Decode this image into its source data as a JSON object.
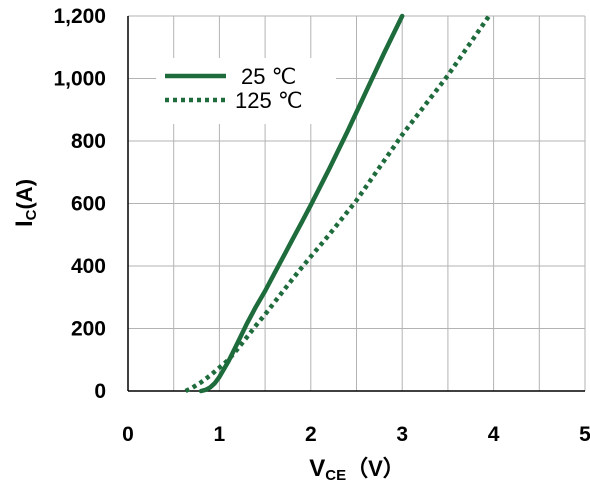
{
  "chart_data": {
    "type": "line",
    "xlabel": {
      "main": "V",
      "sub": "CE",
      "suffix": "（V）"
    },
    "ylabel": {
      "main": "I",
      "sub": "C",
      "suffix": "(A)"
    },
    "xlim": [
      0,
      5
    ],
    "ylim": [
      0,
      1200
    ],
    "x_ticks": [
      0,
      1,
      2,
      3,
      4,
      5
    ],
    "x_tick_labels": [
      "0",
      "1",
      "2",
      "3",
      "4",
      "5"
    ],
    "y_ticks": [
      0,
      200,
      400,
      600,
      800,
      1000,
      1200
    ],
    "y_tick_labels": [
      "0",
      "200",
      "400",
      "600",
      "800",
      "1,000",
      "1,200"
    ],
    "grid": {
      "x_minor_step": 0.5,
      "y_step": 200
    },
    "legend_position": "top-left",
    "colors": {
      "series": "#1e6b3c",
      "grid": "#b3b3b3",
      "axis": "#000000"
    },
    "series": [
      {
        "name": "25 ℃",
        "style": "solid",
        "points": [
          [
            0.8,
            0
          ],
          [
            0.85,
            4
          ],
          [
            0.9,
            12
          ],
          [
            0.95,
            25
          ],
          [
            1.0,
            45
          ],
          [
            1.1,
            95
          ],
          [
            1.2,
            155
          ],
          [
            1.3,
            215
          ],
          [
            1.4,
            270
          ],
          [
            1.5,
            320
          ],
          [
            1.6,
            375
          ],
          [
            1.7,
            430
          ],
          [
            1.8,
            485
          ],
          [
            1.9,
            540
          ],
          [
            2.0,
            595
          ],
          [
            2.2,
            710
          ],
          [
            2.4,
            830
          ],
          [
            2.6,
            955
          ],
          [
            2.8,
            1080
          ],
          [
            3.0,
            1200
          ]
        ]
      },
      {
        "name": "125 ℃",
        "style": "dotted",
        "points": [
          [
            0.63,
            0
          ],
          [
            0.7,
            10
          ],
          [
            0.8,
            28
          ],
          [
            0.9,
            50
          ],
          [
            1.0,
            75
          ],
          [
            1.1,
            100
          ],
          [
            1.2,
            135
          ],
          [
            1.3,
            172
          ],
          [
            1.4,
            210
          ],
          [
            1.5,
            245
          ],
          [
            1.6,
            283
          ],
          [
            1.7,
            321
          ],
          [
            1.8,
            358
          ],
          [
            1.9,
            395
          ],
          [
            2.0,
            430
          ],
          [
            2.2,
            500
          ],
          [
            2.5,
            610
          ],
          [
            3.0,
            820
          ],
          [
            3.5,
            1010
          ],
          [
            3.95,
            1200
          ]
        ]
      }
    ]
  }
}
